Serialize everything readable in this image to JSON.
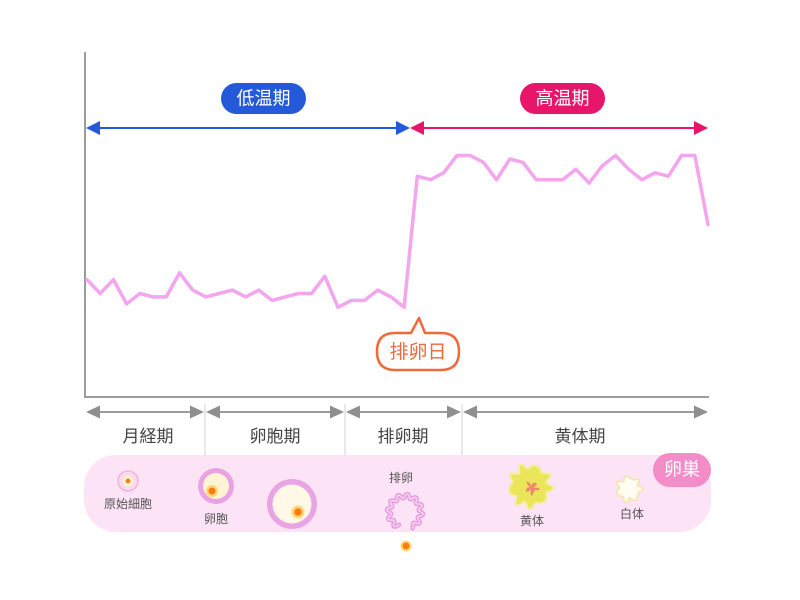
{
  "chart_data": {
    "type": "line",
    "title": "",
    "xlabel": "",
    "ylabel": "",
    "ylim": [
      0,
      100
    ],
    "grid": false,
    "series": [
      {
        "color": "#f3a5ee",
        "values": [
          34,
          30,
          34,
          27,
          30,
          29,
          29,
          36,
          31,
          29,
          30,
          31,
          29,
          31,
          28,
          29,
          30,
          30,
          35,
          26,
          28,
          28,
          31,
          29,
          26,
          64,
          63,
          65,
          70,
          70,
          68,
          63,
          69,
          68,
          63,
          63,
          63,
          66,
          62,
          67,
          70,
          66,
          63,
          65,
          64,
          70,
          70,
          50
        ]
      }
    ],
    "ranges": [
      {
        "label": "低温期",
        "color": "#2459d9"
      },
      {
        "label": "高温期",
        "color": "#e8166b"
      }
    ],
    "annotations": [
      {
        "label": "排卵日",
        "color": "#ef6a3a"
      }
    ],
    "phases": [
      "月経期",
      "卵胞期",
      "排卵期",
      "黄体期"
    ]
  },
  "ovary": {
    "label": "卵巣",
    "label_color": "#f48cc7",
    "band_color": "#fce3f6",
    "stages": [
      "原始細胞",
      "卵胞",
      "排卵",
      "黄体",
      "白体"
    ]
  }
}
